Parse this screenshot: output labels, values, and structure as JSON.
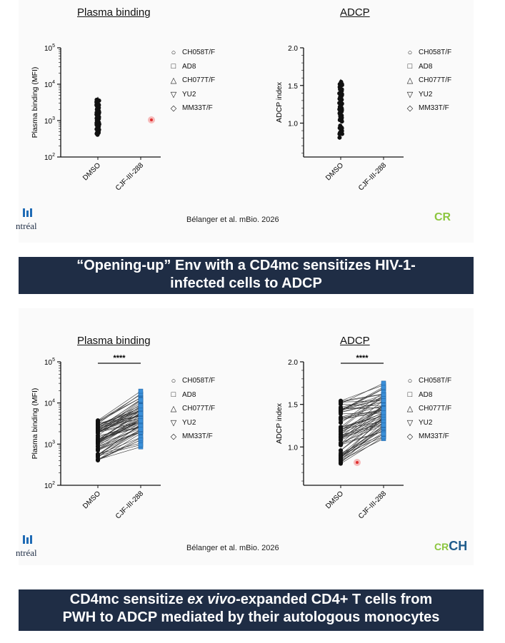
{
  "slide1": {
    "left_title": "Plasma binding",
    "right_title": "ADCP",
    "citation": "Bélanger et al. mBio. 2026",
    "logo_left_text": "ntréal",
    "logo_right_text": "CR"
  },
  "banner1": {
    "line1": "“Opening-up” Env with a CD4mc sensitizes HIV-1-",
    "line2": "infected cells to ADCP"
  },
  "slide2": {
    "left_title": "Plasma binding",
    "right_title": "ADCP",
    "significance": "****",
    "citation": "Bélanger et al. mBio. 2026",
    "logo_left_text": "ntréal",
    "logo_right_cr": "CR",
    "logo_right_ch": "CH"
  },
  "banner2": {
    "line1": "CD4mc sensitize ex vivo-expanded CD4+ T cells from",
    "line2": "PWH to ADCP mediated by their autologous monocytes"
  },
  "legend": [
    {
      "symbol": "○",
      "label": "CH058T/F",
      "icon": "circle-icon"
    },
    {
      "symbol": "□",
      "label": "AD8",
      "icon": "square-icon"
    },
    {
      "symbol": "△",
      "label": "CH077T/F",
      "icon": "triangle-icon"
    },
    {
      "symbol": "▽",
      "label": "YU2",
      "icon": "inverted-triangle-icon"
    },
    {
      "symbol": "◇",
      "label": "MM33T/F",
      "icon": "diamond-icon"
    }
  ],
  "colors": {
    "banner": "#1f2d45",
    "treated": "#3a8fd8",
    "points": "#111111",
    "pointer": "#e03030",
    "crchum_green": "#8cc63f"
  },
  "chart_data": [
    {
      "type": "scatter",
      "panel": "slide1-plasma",
      "title": "Plasma binding",
      "xlabel": "",
      "ylabel": "Plasma binding (MFI)",
      "yscale": "log",
      "categories": [
        "DMSO",
        "CJF-III-288"
      ],
      "yticks": [
        "10^2",
        "10^3",
        "10^4",
        "10^5"
      ],
      "ylim": [
        100,
        100000
      ],
      "series": [
        {
          "category": "DMSO",
          "range": [
            400,
            3800
          ]
        }
      ]
    },
    {
      "type": "scatter",
      "panel": "slide1-adcp",
      "title": "ADCP",
      "xlabel": "",
      "ylabel": "ADCP index",
      "categories": [
        "DMSO",
        "CJF-III-288"
      ],
      "yticks": [
        "1.0",
        "1.5",
        "2.0"
      ],
      "ylim": [
        0.55,
        2.0
      ],
      "series": [
        {
          "category": "DMSO",
          "range": [
            0.8,
            1.55
          ]
        }
      ]
    },
    {
      "type": "line",
      "panel": "slide2-plasma",
      "title": "Plasma binding",
      "xlabel": "",
      "ylabel": "Plasma binding (MFI)",
      "yscale": "log",
      "categories": [
        "DMSO",
        "CJF-III-288"
      ],
      "yticks": [
        "10^2",
        "10^3",
        "10^4",
        "10^5"
      ],
      "ylim": [
        100,
        100000
      ],
      "paired": {
        "dmso_range": [
          400,
          3800
        ],
        "treated_range": [
          700,
          21000
        ]
      }
    },
    {
      "type": "line",
      "panel": "slide2-adcp",
      "title": "ADCP",
      "xlabel": "",
      "ylabel": "ADCP index",
      "categories": [
        "DMSO",
        "CJF-III-288"
      ],
      "yticks": [
        "1.0",
        "1.5",
        "2.0"
      ],
      "ylim": [
        0.55,
        2.0
      ],
      "paired": {
        "dmso_range": [
          0.8,
          1.55
        ],
        "treated_range": [
          1.02,
          1.82
        ]
      }
    }
  ]
}
